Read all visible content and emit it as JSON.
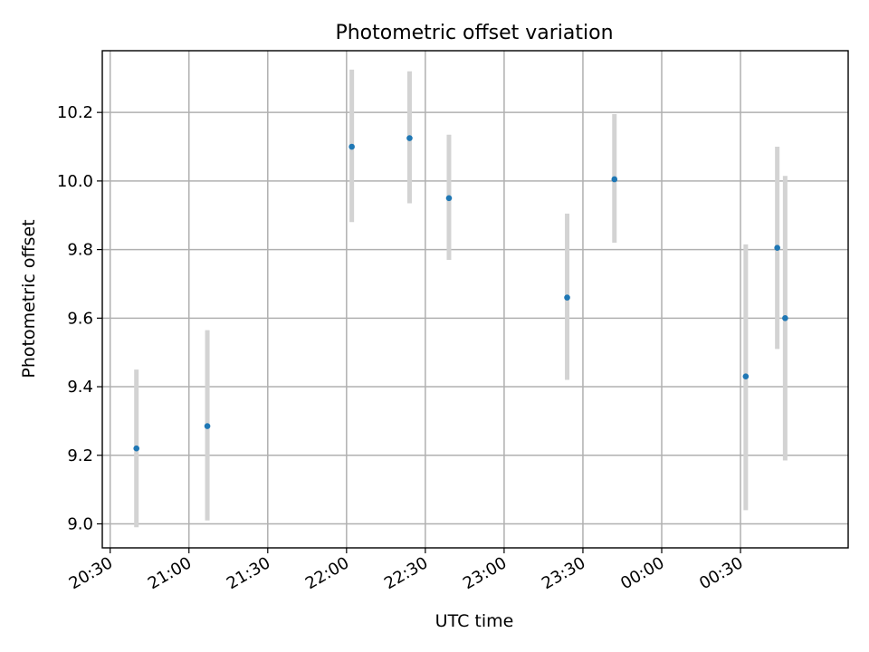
{
  "chart_data": {
    "type": "scatter",
    "title": "Photometric offset variation",
    "xlabel": "UTC time",
    "ylabel": "Photometric offset",
    "x_tick_labels": [
      "20:30",
      "21:00",
      "21:30",
      "22:00",
      "22:30",
      "23:00",
      "23:30",
      "00:00",
      "00:30"
    ],
    "y_tick_labels": [
      "9.0",
      "9.2",
      "9.4",
      "9.6",
      "9.8",
      "10.0",
      "10.2"
    ],
    "x_range": [
      "20:27",
      "01:11"
    ],
    "ylim": [
      8.93,
      10.38
    ],
    "grid": true,
    "legend": "none",
    "colors": {
      "point": "#1f77b4",
      "errorbar": "#d3d3d3"
    },
    "points": [
      {
        "x": "20:40",
        "y": 9.22,
        "y_low": 8.99,
        "y_high": 9.45
      },
      {
        "x": "21:07",
        "y": 9.285,
        "y_low": 9.01,
        "y_high": 9.565
      },
      {
        "x": "22:02",
        "y": 10.1,
        "y_low": 9.88,
        "y_high": 10.325
      },
      {
        "x": "22:24",
        "y": 10.125,
        "y_low": 9.935,
        "y_high": 10.32
      },
      {
        "x": "22:39",
        "y": 9.95,
        "y_low": 9.77,
        "y_high": 10.135
      },
      {
        "x": "23:24",
        "y": 9.66,
        "y_low": 9.42,
        "y_high": 9.905
      },
      {
        "x": "23:42",
        "y": 10.005,
        "y_low": 9.82,
        "y_high": 10.195
      },
      {
        "x": "00:32",
        "y": 9.43,
        "y_low": 9.04,
        "y_high": 9.815
      },
      {
        "x": "00:44",
        "y": 9.805,
        "y_low": 9.51,
        "y_high": 10.1
      },
      {
        "x": "00:47",
        "y": 9.6,
        "y_low": 9.185,
        "y_high": 10.015
      }
    ]
  }
}
